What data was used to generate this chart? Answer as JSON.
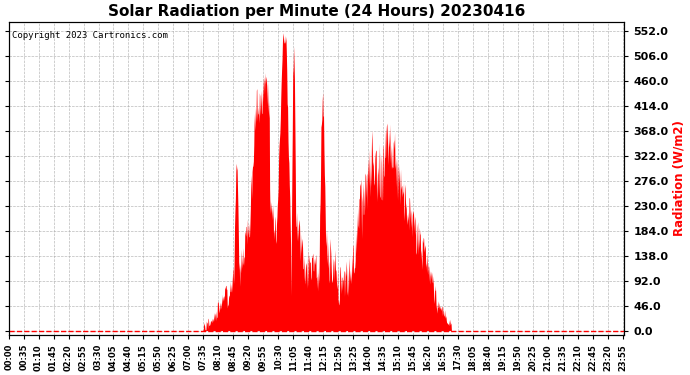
{
  "title": "Solar Radiation per Minute (24 Hours) 20230416",
  "ylabel": "Radiation (W/m2)",
  "copyright_text": "Copyright 2023 Cartronics.com",
  "fill_color": "#ff0000",
  "line_color": "#ff0000",
  "bg_color": "#ffffff",
  "grid_color": "#aaaaaa",
  "dashed_line_color": "#ff0000",
  "yticks": [
    0.0,
    46.0,
    92.0,
    138.0,
    184.0,
    230.0,
    276.0,
    322.0,
    368.0,
    414.0,
    460.0,
    506.0,
    552.0
  ],
  "ylim": [
    -8,
    570
  ],
  "title_fontsize": 11,
  "ylabel_color": "#ff0000",
  "copyright_color": "#000000",
  "tick_color": "#000000"
}
